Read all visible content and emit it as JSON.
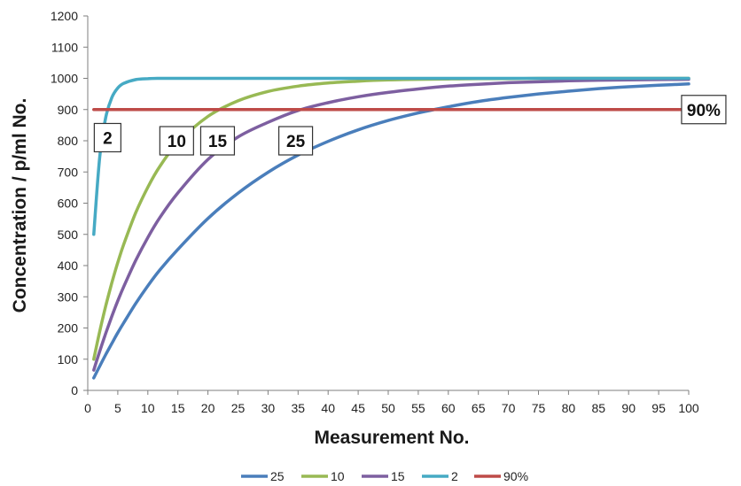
{
  "chart_data": {
    "type": "line",
    "xlabel": "Measurement No.",
    "ylabel": "Concentration / p/ml No.",
    "xlim": [
      0,
      100
    ],
    "ylim": [
      0,
      1200
    ],
    "xticks": [
      0,
      5,
      10,
      15,
      20,
      25,
      30,
      35,
      40,
      45,
      50,
      55,
      60,
      65,
      70,
      75,
      80,
      85,
      90,
      95,
      100
    ],
    "yticks": [
      0,
      100,
      200,
      300,
      400,
      500,
      600,
      700,
      800,
      900,
      1000,
      1100,
      1200
    ],
    "x": [
      1,
      2,
      3,
      4,
      5,
      6,
      8,
      10,
      12,
      15,
      20,
      25,
      30,
      35,
      40,
      45,
      50,
      55,
      60,
      65,
      70,
      75,
      80,
      85,
      90,
      95,
      100
    ],
    "series": [
      {
        "name": "25",
        "color": "#4a7ebb",
        "values": [
          40,
          78,
          115,
          150,
          185,
          217,
          279,
          335,
          386,
          452,
          551,
          632,
          699,
          754,
          798,
          835,
          865,
          889,
          909,
          926,
          939,
          950,
          959,
          967,
          973,
          978,
          982
        ]
      },
      {
        "name": "10",
        "color": "#98b954",
        "values": [
          100,
          190,
          271,
          344,
          410,
          469,
          570,
          651,
          718,
          794,
          878,
          928,
          958,
          975,
          985,
          991,
          995,
          997,
          998,
          999,
          999,
          1000,
          1000,
          1000,
          1000,
          1000,
          1000
        ]
      },
      {
        "name": "15",
        "color": "#7d5fa0",
        "values": [
          65,
          126,
          183,
          237,
          287,
          333,
          417,
          490,
          554,
          633,
          740,
          812,
          859,
          897,
          922,
          941,
          955,
          966,
          975,
          981,
          986,
          989,
          992,
          994,
          995,
          996,
          997
        ]
      },
      {
        "name": "2",
        "color": "#46aac4",
        "values": [
          500,
          750,
          875,
          938,
          969,
          984,
          996,
          999,
          1000,
          1000,
          1000,
          1000,
          1000,
          1000,
          1000,
          1000,
          1000,
          1000,
          1000,
          1000,
          1000,
          1000,
          1000,
          1000,
          1000,
          1000,
          1000
        ]
      },
      {
        "name": "90%",
        "color": "#be4b48",
        "values": [
          900,
          900,
          900,
          900,
          900,
          900,
          900,
          900,
          900,
          900,
          900,
          900,
          900,
          900,
          900,
          900,
          900,
          900,
          900,
          900,
          900,
          900,
          900,
          900,
          900,
          900,
          900
        ]
      }
    ],
    "annotations": [
      {
        "text": "2",
        "x": 3.3,
        "y": 810
      },
      {
        "text": "10",
        "x": 14.8,
        "y": 800
      },
      {
        "text": "15",
        "x": 21.6,
        "y": 800
      },
      {
        "text": "25",
        "x": 34.6,
        "y": 800
      },
      {
        "text": "90%",
        "x": 102.5,
        "y": 900
      }
    ],
    "legend": "bottom",
    "grid": false
  }
}
